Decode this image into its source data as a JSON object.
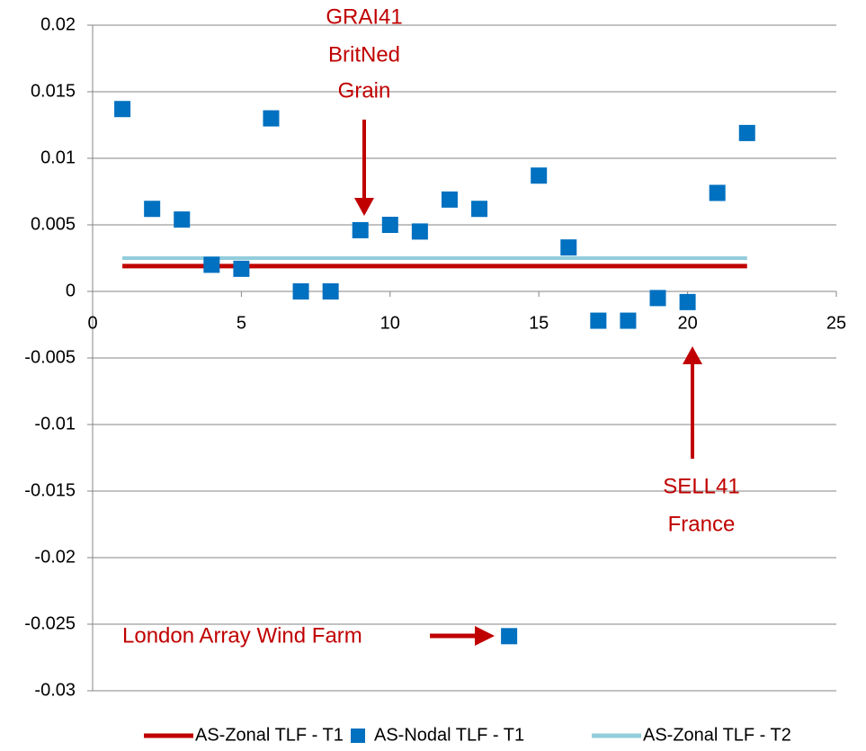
{
  "chart_data": {
    "type": "scatter",
    "x": [
      1,
      2,
      3,
      4,
      5,
      6,
      7,
      8,
      9,
      10,
      11,
      12,
      13,
      14,
      15,
      16,
      17,
      18,
      19,
      20,
      21,
      22
    ],
    "series": [
      {
        "name": "AS-Zonal TLF - T1",
        "color": "#c00000",
        "style": "line",
        "values": [
          0.0019,
          0.0019,
          0.0019,
          0.0019,
          0.0019,
          0.0019,
          0.0019,
          0.0019,
          0.0019,
          0.0019,
          0.0019,
          0.0019,
          0.0019,
          0.0019,
          0.0019,
          0.0019,
          0.0019,
          0.0019,
          0.0019,
          0.0019,
          0.0019,
          0.0019
        ]
      },
      {
        "name": "AS-Nodal TLF - T1",
        "color": "#0070c0",
        "style": "marker",
        "values": [
          0.0137,
          0.0062,
          0.0054,
          0.002,
          0.0017,
          0.013,
          0.0,
          0.0,
          0.0046,
          0.005,
          0.0045,
          0.0069,
          0.0062,
          -0.0259,
          0.0087,
          0.0033,
          -0.0022,
          -0.0022,
          -0.0005,
          -0.0008,
          0.0074,
          0.0119
        ]
      },
      {
        "name": "AS-Zonal TLF - T2",
        "color": "#92cddc",
        "style": "line",
        "values": [
          0.0025,
          0.0025,
          0.0025,
          0.0025,
          0.0025,
          0.0025,
          0.0025,
          0.0025,
          0.0025,
          0.0025,
          0.0025,
          0.0025,
          0.0025,
          0.0025,
          0.0025,
          0.0025,
          0.0025,
          0.0025,
          0.0025,
          0.0025,
          0.0025,
          0.0025
        ]
      }
    ],
    "xlim": [
      0,
      25
    ],
    "xticks": [
      0,
      5,
      10,
      15,
      20,
      25
    ],
    "ylim": [
      -0.03,
      0.02
    ],
    "yticks": [
      0.02,
      0.015,
      0.01,
      0.005,
      0,
      -0.005,
      -0.01,
      -0.015,
      -0.02,
      -0.025,
      -0.03
    ],
    "grid": true,
    "legend": "bottom",
    "annotations": [
      "GRAI41",
      "BritNed",
      "Grain",
      "SELL41",
      "France",
      "London Array Wind Farm"
    ]
  }
}
